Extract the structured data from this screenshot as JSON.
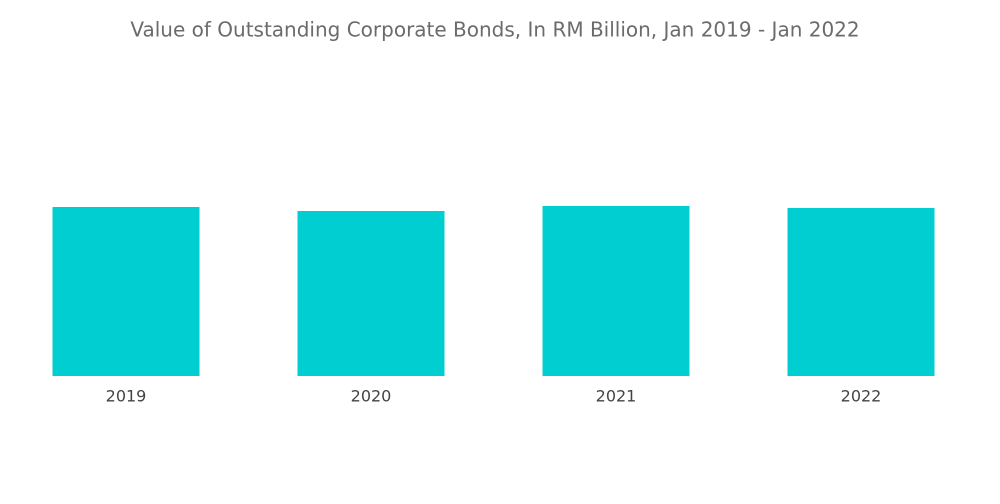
{
  "chart_data": {
    "type": "bar",
    "title": "Value of Outstanding Corporate Bonds, In RM Billion, Jan 2019 - Jan 2022",
    "categories": [
      "2019",
      "2020",
      "2021",
      "2022"
    ],
    "values": [
      169,
      165,
      170,
      168
    ],
    "color": "#00ced1"
  }
}
